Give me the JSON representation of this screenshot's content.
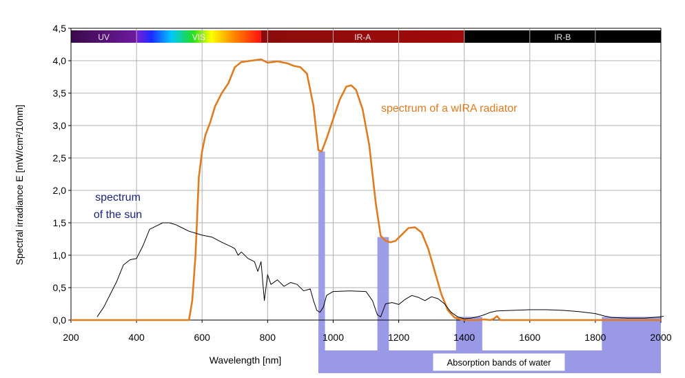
{
  "chart_data": {
    "type": "line",
    "xlabel": "Wavelength [nm]",
    "ylabel": "Spectral irradiance E [mW/cm²/10nm]",
    "xlim": [
      200,
      2000
    ],
    "ylim": [
      0,
      4.5
    ],
    "x_ticks": [
      "200",
      "400",
      "600",
      "800",
      "1000",
      "1200",
      "1400",
      "1600",
      "1800",
      "2000"
    ],
    "y_ticks": [
      "0,0",
      "0,5",
      "1,0",
      "1,5",
      "2,0",
      "2,5",
      "3,0",
      "3,5",
      "4,0",
      "4,5"
    ],
    "grid": true,
    "bands": [
      {
        "label": "UV",
        "from": 200,
        "to": 400
      },
      {
        "label": "VIS",
        "from": 400,
        "to": 780
      },
      {
        "label": "IR-A",
        "from": 780,
        "to": 1400
      },
      {
        "label": "IR-B",
        "from": 1400,
        "to": 2000
      }
    ],
    "annotations": {
      "wira": "spectrum of a wIRA radiator",
      "sun_line1": "spectrum",
      "sun_line2": "of the sun",
      "water": "Absorption bands of water"
    },
    "colors": {
      "wira": "#e07b1f",
      "sun": "#000000",
      "water": "#9999e6",
      "sun_label": "#1a237e"
    },
    "series": [
      {
        "key": "wira",
        "x": [
          200,
          560,
          570,
          580,
          590,
          600,
          610,
          625,
          640,
          660,
          680,
          700,
          720,
          750,
          780,
          800,
          830,
          860,
          880,
          900,
          920,
          940,
          955,
          965,
          980,
          1000,
          1020,
          1040,
          1055,
          1070,
          1090,
          1110,
          1130,
          1145,
          1160,
          1175,
          1190,
          1210,
          1230,
          1250,
          1270,
          1290,
          1310,
          1330,
          1350,
          1370,
          1390,
          1410,
          1440,
          1460,
          1480,
          1490,
          1500,
          1510,
          1530,
          1600,
          1700,
          1800,
          1900,
          2000
        ],
        "y": [
          0,
          0,
          0.3,
          1.0,
          2.2,
          2.6,
          2.85,
          3.05,
          3.3,
          3.5,
          3.65,
          3.9,
          3.98,
          4.0,
          4.02,
          3.97,
          3.99,
          3.96,
          3.92,
          3.9,
          3.8,
          3.3,
          2.62,
          2.6,
          2.8,
          3.1,
          3.4,
          3.6,
          3.62,
          3.55,
          3.25,
          2.7,
          1.8,
          1.3,
          1.22,
          1.2,
          1.22,
          1.32,
          1.42,
          1.43,
          1.35,
          1.1,
          0.75,
          0.4,
          0.15,
          0.04,
          0.01,
          0,
          0,
          0.01,
          0,
          0.02,
          0.06,
          0,
          0,
          0,
          0,
          0,
          0,
          0
        ]
      },
      {
        "key": "sun",
        "x": [
          280,
          300,
          320,
          340,
          360,
          380,
          400,
          420,
          440,
          460,
          480,
          500,
          520,
          540,
          560,
          580,
          600,
          630,
          660,
          690,
          700,
          710,
          720,
          740,
          760,
          770,
          780,
          790,
          800,
          810,
          830,
          850,
          870,
          890,
          910,
          930,
          940,
          950,
          960,
          970,
          980,
          1000,
          1050,
          1100,
          1120,
          1135,
          1145,
          1160,
          1180,
          1200,
          1220,
          1240,
          1260,
          1280,
          1300,
          1320,
          1340,
          1360,
          1380,
          1400,
          1420,
          1440,
          1460,
          1480,
          1500,
          1550,
          1600,
          1650,
          1700,
          1750,
          1800,
          1830,
          1850,
          1900,
          1950,
          2000
        ],
        "y": [
          0.05,
          0.2,
          0.4,
          0.6,
          0.85,
          0.93,
          0.95,
          1.15,
          1.4,
          1.45,
          1.5,
          1.5,
          1.47,
          1.42,
          1.37,
          1.34,
          1.31,
          1.28,
          1.2,
          1.13,
          1.1,
          1.0,
          1.05,
          0.95,
          0.9,
          0.75,
          0.9,
          0.3,
          0.7,
          0.55,
          0.62,
          0.52,
          0.58,
          0.55,
          0.45,
          0.48,
          0.3,
          0.15,
          0.12,
          0.2,
          0.38,
          0.44,
          0.45,
          0.44,
          0.3,
          0.08,
          0.05,
          0.25,
          0.27,
          0.24,
          0.32,
          0.38,
          0.35,
          0.3,
          0.36,
          0.33,
          0.25,
          0.12,
          0.05,
          0.02,
          0.03,
          0.05,
          0.08,
          0.12,
          0.14,
          0.15,
          0.16,
          0.16,
          0.15,
          0.13,
          0.1,
          0.06,
          0.04,
          0.03,
          0.03,
          0.05
        ]
      }
    ],
    "water_bars": [
      {
        "from": 955,
        "to": 975,
        "y": 2.6
      },
      {
        "from": 1135,
        "to": 1170,
        "y": 1.28
      },
      {
        "from": 1375,
        "to": 1455,
        "y": 0.05
      },
      {
        "from": 1820,
        "to": 2000,
        "y": 0.05
      }
    ]
  }
}
